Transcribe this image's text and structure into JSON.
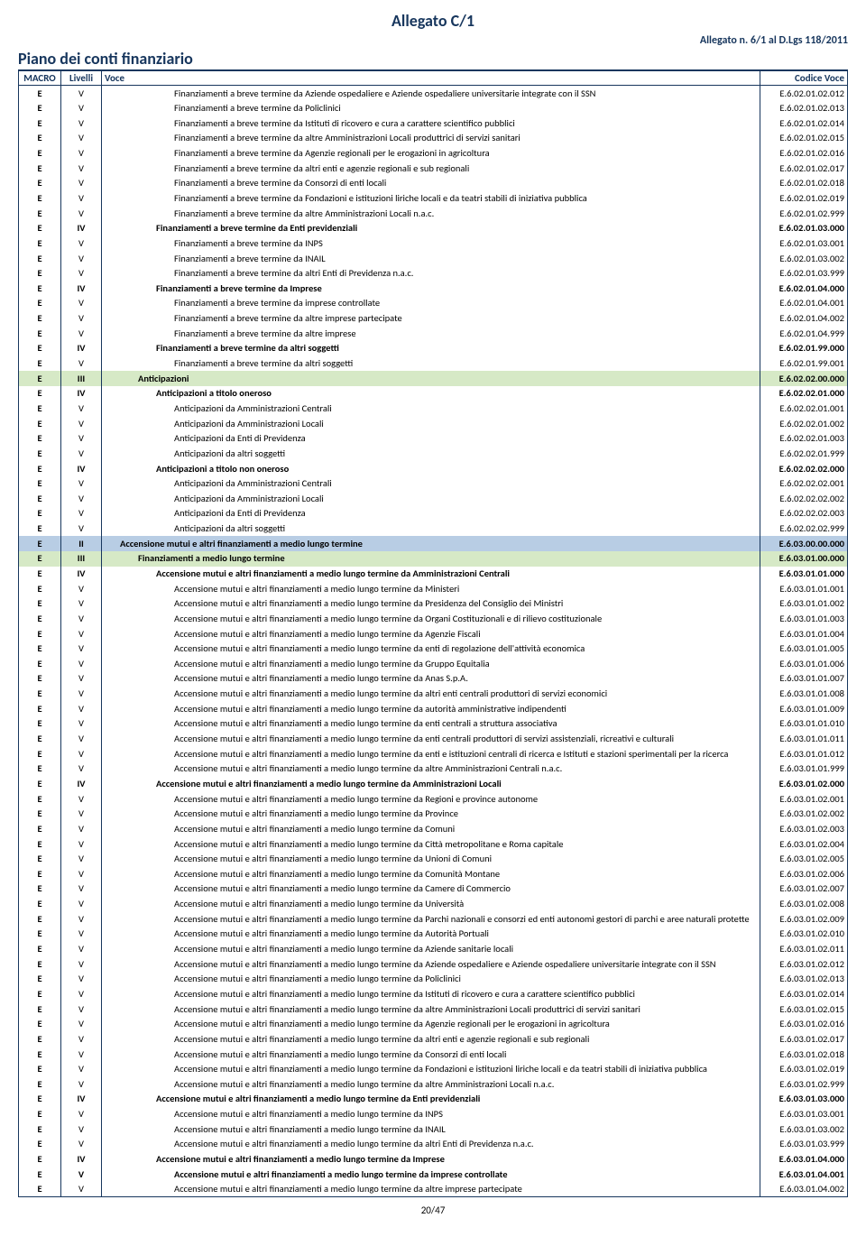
{
  "header": {
    "title": "Allegato C/1",
    "subtitle_right": "Allegato n. 6/1 al D.Lgs 118/2011",
    "plan_title": "Piano dei conti finanziario"
  },
  "columns": {
    "macro": "MACRO",
    "livelli": "Livelli",
    "voce": "Voce",
    "codice": "Codice Voce"
  },
  "rows": [
    {
      "m": "E",
      "l": "V",
      "v": "Finanziamenti a breve termine da Aziende ospedaliere e Aziende ospedaliere universitarie integrate con il SSN",
      "c": "E.6.02.01.02.012",
      "i": 4,
      "b": false,
      "bg": ""
    },
    {
      "m": "E",
      "l": "V",
      "v": "Finanziamenti a breve termine da Policlinici",
      "c": "E.6.02.01.02.013",
      "i": 4,
      "b": false,
      "bg": ""
    },
    {
      "m": "E",
      "l": "V",
      "v": "Finanziamenti a breve termine da Istituti di ricovero e cura a carattere scientifico pubblici",
      "c": "E.6.02.01.02.014",
      "i": 4,
      "b": false,
      "bg": ""
    },
    {
      "m": "E",
      "l": "V",
      "v": "Finanziamenti a breve termine da altre Amministrazioni Locali produttrici di servizi sanitari",
      "c": "E.6.02.01.02.015",
      "i": 4,
      "b": false,
      "bg": ""
    },
    {
      "m": "E",
      "l": "V",
      "v": "Finanziamenti a breve termine da Agenzie regionali per le erogazioni in agricoltura",
      "c": "E.6.02.01.02.016",
      "i": 4,
      "b": false,
      "bg": ""
    },
    {
      "m": "E",
      "l": "V",
      "v": "Finanziamenti a breve termine da altri enti e agenzie regionali e sub regionali",
      "c": "E.6.02.01.02.017",
      "i": 4,
      "b": false,
      "bg": ""
    },
    {
      "m": "E",
      "l": "V",
      "v": "Finanziamenti a breve termine da Consorzi di enti locali",
      "c": "E.6.02.01.02.018",
      "i": 4,
      "b": false,
      "bg": ""
    },
    {
      "m": "E",
      "l": "V",
      "v": "Finanziamenti a breve termine da Fondazioni e istituzioni liriche locali e da teatri stabili di iniziativa pubblica",
      "c": "E.6.02.01.02.019",
      "i": 4,
      "b": false,
      "bg": ""
    },
    {
      "m": "E",
      "l": "V",
      "v": "Finanziamenti a breve termine da altre Amministrazioni Locali n.a.c.",
      "c": "E.6.02.01.02.999",
      "i": 4,
      "b": false,
      "bg": ""
    },
    {
      "m": "E",
      "l": "IV",
      "v": "Finanziamenti a breve termine da Enti previdenziali",
      "c": "E.6.02.01.03.000",
      "i": 3,
      "b": true,
      "bg": ""
    },
    {
      "m": "E",
      "l": "V",
      "v": "Finanziamenti a breve termine da INPS",
      "c": "E.6.02.01.03.001",
      "i": 4,
      "b": false,
      "bg": ""
    },
    {
      "m": "E",
      "l": "V",
      "v": "Finanziamenti a breve termine da INAIL",
      "c": "E.6.02.01.03.002",
      "i": 4,
      "b": false,
      "bg": ""
    },
    {
      "m": "E",
      "l": "V",
      "v": "Finanziamenti a breve termine da altri Enti di Previdenza n.a.c.",
      "c": "E.6.02.01.03.999",
      "i": 4,
      "b": false,
      "bg": ""
    },
    {
      "m": "E",
      "l": "IV",
      "v": "Finanziamenti a breve termine da Imprese",
      "c": "E.6.02.01.04.000",
      "i": 3,
      "b": true,
      "bg": ""
    },
    {
      "m": "E",
      "l": "V",
      "v": "Finanziamenti a breve termine da imprese controllate",
      "c": "E.6.02.01.04.001",
      "i": 4,
      "b": false,
      "bg": ""
    },
    {
      "m": "E",
      "l": "V",
      "v": "Finanziamenti a breve termine da altre imprese partecipate",
      "c": "E.6.02.01.04.002",
      "i": 4,
      "b": false,
      "bg": ""
    },
    {
      "m": "E",
      "l": "V",
      "v": "Finanziamenti a breve termine da altre imprese",
      "c": "E.6.02.01.04.999",
      "i": 4,
      "b": false,
      "bg": ""
    },
    {
      "m": "E",
      "l": "IV",
      "v": "Finanziamenti a breve termine da altri soggetti",
      "c": "E.6.02.01.99.000",
      "i": 3,
      "b": true,
      "bg": ""
    },
    {
      "m": "E",
      "l": "V",
      "v": "Finanziamenti a breve termine da altri soggetti",
      "c": "E.6.02.01.99.001",
      "i": 4,
      "b": false,
      "bg": ""
    },
    {
      "m": "E",
      "l": "III",
      "v": "Anticipazioni",
      "c": "E.6.02.02.00.000",
      "i": 2,
      "b": true,
      "bg": "green"
    },
    {
      "m": "E",
      "l": "IV",
      "v": "Anticipazioni a titolo oneroso",
      "c": "E.6.02.02.01.000",
      "i": 3,
      "b": true,
      "bg": ""
    },
    {
      "m": "E",
      "l": "V",
      "v": "Anticipazioni da Amministrazioni Centrali",
      "c": "E.6.02.02.01.001",
      "i": 4,
      "b": false,
      "bg": ""
    },
    {
      "m": "E",
      "l": "V",
      "v": "Anticipazioni da Amministrazioni Locali",
      "c": "E.6.02.02.01.002",
      "i": 4,
      "b": false,
      "bg": ""
    },
    {
      "m": "E",
      "l": "V",
      "v": "Anticipazioni da Enti di Previdenza",
      "c": "E.6.02.02.01.003",
      "i": 4,
      "b": false,
      "bg": ""
    },
    {
      "m": "E",
      "l": "V",
      "v": "Anticipazioni da altri soggetti",
      "c": "E.6.02.02.01.999",
      "i": 4,
      "b": false,
      "bg": ""
    },
    {
      "m": "E",
      "l": "IV",
      "v": "Anticipazioni a titolo non oneroso",
      "c": "E.6.02.02.02.000",
      "i": 3,
      "b": true,
      "bg": ""
    },
    {
      "m": "E",
      "l": "V",
      "v": "Anticipazioni da Amministrazioni Centrali",
      "c": "E.6.02.02.02.001",
      "i": 4,
      "b": false,
      "bg": ""
    },
    {
      "m": "E",
      "l": "V",
      "v": "Anticipazioni da Amministrazioni Locali",
      "c": "E.6.02.02.02.002",
      "i": 4,
      "b": false,
      "bg": ""
    },
    {
      "m": "E",
      "l": "V",
      "v": "Anticipazioni da Enti di Previdenza",
      "c": "E.6.02.02.02.003",
      "i": 4,
      "b": false,
      "bg": ""
    },
    {
      "m": "E",
      "l": "V",
      "v": "Anticipazioni da altri soggetti",
      "c": "E.6.02.02.02.999",
      "i": 4,
      "b": false,
      "bg": ""
    },
    {
      "m": "E",
      "l": "II",
      "v": "Accensione mutui e altri finanziamenti a medio lungo termine",
      "c": "E.6.03.00.00.000",
      "i": 1,
      "b": true,
      "bg": "blue"
    },
    {
      "m": "E",
      "l": "III",
      "v": "Finanziamenti a medio lungo termine",
      "c": "E.6.03.01.00.000",
      "i": 2,
      "b": true,
      "bg": "green"
    },
    {
      "m": "E",
      "l": "IV",
      "v": "Accensione mutui e altri finanziamenti a medio lungo termine da Amministrazioni Centrali",
      "c": "E.6.03.01.01.000",
      "i": 3,
      "b": true,
      "bg": ""
    },
    {
      "m": "E",
      "l": "V",
      "v": "Accensione mutui e altri finanziamenti a medio lungo termine da Ministeri",
      "c": "E.6.03.01.01.001",
      "i": 4,
      "b": false,
      "bg": ""
    },
    {
      "m": "E",
      "l": "V",
      "v": "Accensione mutui e altri finanziamenti a medio lungo termine da Presidenza del Consiglio dei Ministri",
      "c": "E.6.03.01.01.002",
      "i": 4,
      "b": false,
      "bg": ""
    },
    {
      "m": "E",
      "l": "V",
      "v": "Accensione mutui e altri finanziamenti a medio lungo termine da Organi Costituzionali e di rilievo costituzionale",
      "c": "E.6.03.01.01.003",
      "i": 4,
      "b": false,
      "bg": ""
    },
    {
      "m": "E",
      "l": "V",
      "v": "Accensione mutui e altri finanziamenti a medio lungo termine da Agenzie Fiscali",
      "c": "E.6.03.01.01.004",
      "i": 4,
      "b": false,
      "bg": ""
    },
    {
      "m": "E",
      "l": "V",
      "v": "Accensione mutui e altri finanziamenti a medio lungo termine da enti di regolazione dell'attività economica",
      "c": "E.6.03.01.01.005",
      "i": 4,
      "b": false,
      "bg": ""
    },
    {
      "m": "E",
      "l": "V",
      "v": "Accensione mutui e altri finanziamenti a medio lungo termine da Gruppo Equitalia",
      "c": "E.6.03.01.01.006",
      "i": 4,
      "b": false,
      "bg": ""
    },
    {
      "m": "E",
      "l": "V",
      "v": "Accensione mutui e altri finanziamenti a medio lungo termine da Anas S.p.A.",
      "c": "E.6.03.01.01.007",
      "i": 4,
      "b": false,
      "bg": ""
    },
    {
      "m": "E",
      "l": "V",
      "v": "Accensione mutui e altri finanziamenti a medio lungo termine da altri enti centrali produttori di servizi economici",
      "c": "E.6.03.01.01.008",
      "i": 4,
      "b": false,
      "bg": ""
    },
    {
      "m": "E",
      "l": "V",
      "v": "Accensione mutui e altri finanziamenti a medio lungo termine da autorità amministrative indipendenti",
      "c": "E.6.03.01.01.009",
      "i": 4,
      "b": false,
      "bg": ""
    },
    {
      "m": "E",
      "l": "V",
      "v": "Accensione mutui e altri finanziamenti a medio lungo termine da enti centrali a struttura associativa",
      "c": "E.6.03.01.01.010",
      "i": 4,
      "b": false,
      "bg": ""
    },
    {
      "m": "E",
      "l": "V",
      "v": "Accensione mutui e altri finanziamenti a medio lungo termine da enti centrali produttori di servizi assistenziali, ricreativi e culturali",
      "c": "E.6.03.01.01.011",
      "i": 4,
      "b": false,
      "bg": ""
    },
    {
      "m": "E",
      "l": "V",
      "v": "Accensione mutui e altri finanziamenti a medio lungo termine da enti e istituzioni centrali di ricerca e Istituti e stazioni sperimentali per la ricerca",
      "c": "E.6.03.01.01.012",
      "i": 4,
      "b": false,
      "bg": ""
    },
    {
      "m": "E",
      "l": "V",
      "v": "Accensione mutui e altri finanziamenti a medio lungo termine da altre Amministrazioni Centrali n.a.c.",
      "c": "E.6.03.01.01.999",
      "i": 4,
      "b": false,
      "bg": ""
    },
    {
      "m": "E",
      "l": "IV",
      "v": "Accensione mutui e altri finanziamenti a medio lungo termine da Amministrazioni Locali",
      "c": "E.6.03.01.02.000",
      "i": 3,
      "b": true,
      "bg": ""
    },
    {
      "m": "E",
      "l": "V",
      "v": "Accensione mutui e altri finanziamenti a medio lungo termine da Regioni e province autonome",
      "c": "E.6.03.01.02.001",
      "i": 4,
      "b": false,
      "bg": ""
    },
    {
      "m": "E",
      "l": "V",
      "v": "Accensione mutui e altri finanziamenti a medio lungo termine da Province",
      "c": "E.6.03.01.02.002",
      "i": 4,
      "b": false,
      "bg": ""
    },
    {
      "m": "E",
      "l": "V",
      "v": "Accensione mutui e altri finanziamenti a medio lungo termine da Comuni",
      "c": "E.6.03.01.02.003",
      "i": 4,
      "b": false,
      "bg": ""
    },
    {
      "m": "E",
      "l": "V",
      "v": "Accensione mutui e altri finanziamenti a medio lungo termine da Città metropolitane e Roma capitale",
      "c": "E.6.03.01.02.004",
      "i": 4,
      "b": false,
      "bg": ""
    },
    {
      "m": "E",
      "l": "V",
      "v": "Accensione mutui e altri finanziamenti a medio lungo termine da Unioni di Comuni",
      "c": "E.6.03.01.02.005",
      "i": 4,
      "b": false,
      "bg": ""
    },
    {
      "m": "E",
      "l": "V",
      "v": "Accensione mutui e altri finanziamenti a medio lungo termine da Comunità Montane",
      "c": "E.6.03.01.02.006",
      "i": 4,
      "b": false,
      "bg": ""
    },
    {
      "m": "E",
      "l": "V",
      "v": "Accensione mutui e altri finanziamenti a medio lungo termine da Camere di Commercio",
      "c": "E.6.03.01.02.007",
      "i": 4,
      "b": false,
      "bg": ""
    },
    {
      "m": "E",
      "l": "V",
      "v": "Accensione mutui e altri finanziamenti a medio lungo termine da Università",
      "c": "E.6.03.01.02.008",
      "i": 4,
      "b": false,
      "bg": ""
    },
    {
      "m": "E",
      "l": "V",
      "v": "Accensione mutui e altri finanziamenti a medio lungo termine da Parchi nazionali e consorzi ed enti autonomi gestori di parchi e aree naturali protette",
      "c": "E.6.03.01.02.009",
      "i": 4,
      "b": false,
      "bg": ""
    },
    {
      "m": "E",
      "l": "V",
      "v": "Accensione mutui e altri finanziamenti a medio lungo termine da Autorità Portuali",
      "c": "E.6.03.01.02.010",
      "i": 4,
      "b": false,
      "bg": ""
    },
    {
      "m": "E",
      "l": "V",
      "v": "Accensione mutui e altri finanziamenti a medio lungo termine da Aziende sanitarie locali",
      "c": "E.6.03.01.02.011",
      "i": 4,
      "b": false,
      "bg": ""
    },
    {
      "m": "E",
      "l": "V",
      "v": "Accensione mutui e altri finanziamenti a medio lungo termine da Aziende ospedaliere e Aziende ospedaliere universitarie integrate con il SSN",
      "c": "E.6.03.01.02.012",
      "i": 4,
      "b": false,
      "bg": ""
    },
    {
      "m": "E",
      "l": "V",
      "v": "Accensione mutui e altri finanziamenti a medio lungo termine da Policlinici",
      "c": "E.6.03.01.02.013",
      "i": 4,
      "b": false,
      "bg": ""
    },
    {
      "m": "E",
      "l": "V",
      "v": "Accensione mutui e altri finanziamenti a medio lungo termine da Istituti di ricovero e cura a carattere scientifico pubblici",
      "c": "E.6.03.01.02.014",
      "i": 4,
      "b": false,
      "bg": ""
    },
    {
      "m": "E",
      "l": "V",
      "v": "Accensione mutui e altri finanziamenti a medio lungo termine da altre Amministrazioni Locali produttrici di servizi sanitari",
      "c": "E.6.03.01.02.015",
      "i": 4,
      "b": false,
      "bg": ""
    },
    {
      "m": "E",
      "l": "V",
      "v": "Accensione mutui e altri finanziamenti a medio lungo termine da Agenzie regionali per le erogazioni in agricoltura",
      "c": "E.6.03.01.02.016",
      "i": 4,
      "b": false,
      "bg": ""
    },
    {
      "m": "E",
      "l": "V",
      "v": "Accensione mutui e altri finanziamenti a medio lungo termine da altri enti e agenzie regionali e sub regionali",
      "c": "E.6.03.01.02.017",
      "i": 4,
      "b": false,
      "bg": ""
    },
    {
      "m": "E",
      "l": "V",
      "v": "Accensione mutui e altri finanziamenti a medio lungo termine da Consorzi di enti locali",
      "c": "E.6.03.01.02.018",
      "i": 4,
      "b": false,
      "bg": ""
    },
    {
      "m": "E",
      "l": "V",
      "v": "Accensione mutui e altri finanziamenti a medio lungo termine da Fondazioni e istituzioni liriche locali e da teatri stabili di iniziativa pubblica",
      "c": "E.6.03.01.02.019",
      "i": 4,
      "b": false,
      "bg": ""
    },
    {
      "m": "E",
      "l": "V",
      "v": "Accensione mutui e altri finanziamenti a medio lungo termine da altre Amministrazioni Locali n.a.c.",
      "c": "E.6.03.01.02.999",
      "i": 4,
      "b": false,
      "bg": ""
    },
    {
      "m": "E",
      "l": "IV",
      "v": "Accensione mutui e altri finanziamenti a medio lungo termine da Enti previdenziali",
      "c": "E.6.03.01.03.000",
      "i": 3,
      "b": true,
      "bg": ""
    },
    {
      "m": "E",
      "l": "V",
      "v": "Accensione mutui e altri finanziamenti a medio lungo termine da INPS",
      "c": "E.6.03.01.03.001",
      "i": 4,
      "b": false,
      "bg": ""
    },
    {
      "m": "E",
      "l": "V",
      "v": "Accensione mutui e altri finanziamenti a medio lungo termine da INAIL",
      "c": "E.6.03.01.03.002",
      "i": 4,
      "b": false,
      "bg": ""
    },
    {
      "m": "E",
      "l": "V",
      "v": "Accensione mutui e altri finanziamenti a medio lungo termine da altri Enti di Previdenza n.a.c.",
      "c": "E.6.03.01.03.999",
      "i": 4,
      "b": false,
      "bg": ""
    },
    {
      "m": "E",
      "l": "IV",
      "v": "Accensione mutui e altri finanziamenti a medio lungo termine da Imprese",
      "c": "E.6.03.01.04.000",
      "i": 3,
      "b": true,
      "bg": ""
    },
    {
      "m": "E",
      "l": "V",
      "v": "Accensione mutui e altri finanziamenti a medio lungo termine da imprese controllate",
      "c": "E.6.03.01.04.001",
      "i": 4,
      "b": true,
      "bg": ""
    },
    {
      "m": "E",
      "l": "V",
      "v": "Accensione mutui e altri finanziamenti a medio lungo termine da altre imprese partecipate",
      "c": "E.6.03.01.04.002",
      "i": 4,
      "b": false,
      "bg": ""
    }
  ],
  "pager": "20/47"
}
